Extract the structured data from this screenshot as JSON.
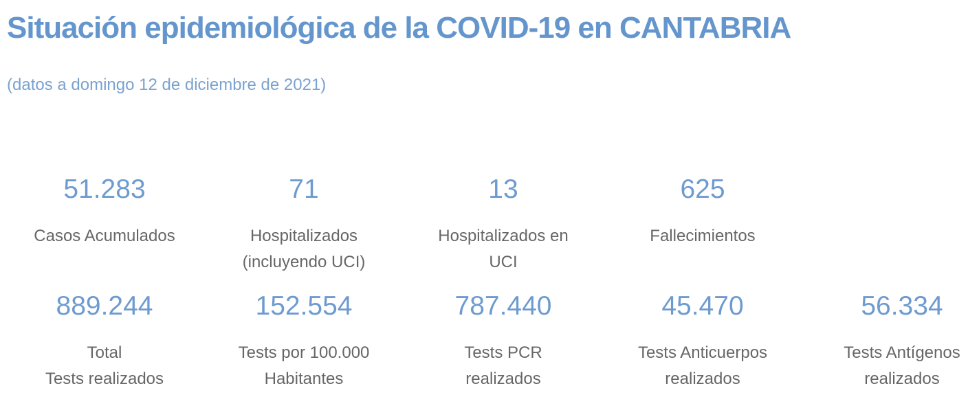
{
  "header": {
    "title": "Situación epidemiológica de la COVID-19 en CANTABRIA",
    "subtitle": "(datos a domingo 12 de diciembre de 2021)"
  },
  "stats_row1": [
    {
      "value": "51.283",
      "label_line1": "Casos Acumulados",
      "label_line2": ""
    },
    {
      "value": "71",
      "label_line1": "Hospitalizados",
      "label_line2": "(incluyendo UCI)"
    },
    {
      "value": "13",
      "label_line1": "Hospitalizados en",
      "label_line2": "UCI"
    },
    {
      "value": "625",
      "label_line1": "Fallecimientos",
      "label_line2": ""
    }
  ],
  "stats_row2": [
    {
      "value": "889.244",
      "label_line1": "Total",
      "label_line2": "Tests realizados"
    },
    {
      "value": "152.554",
      "label_line1": "Tests por 100.000",
      "label_line2": "Habitantes"
    },
    {
      "value": "787.440",
      "label_line1": "Tests PCR",
      "label_line2": "realizados"
    },
    {
      "value": "45.470",
      "label_line1": "Tests Anticuerpos",
      "label_line2": "realizados"
    },
    {
      "value": "56.334",
      "label_line1": "Tests Antígenos",
      "label_line2": "realizados"
    }
  ],
  "colors": {
    "title": "#6496CD",
    "subtitle": "#7AA2D0",
    "value": "#6D9BD0",
    "label": "#666666",
    "background": "#FFFFFF"
  },
  "chart_data": {
    "type": "table",
    "title": "Situación epidemiológica de la COVID-19 en CANTABRIA",
    "subtitle": "(datos a domingo 12 de diciembre de 2021)",
    "series": [
      {
        "name": "Casos Acumulados",
        "value": 51283
      },
      {
        "name": "Hospitalizados (incluyendo UCI)",
        "value": 71
      },
      {
        "name": "Hospitalizados en UCI",
        "value": 13
      },
      {
        "name": "Fallecimientos",
        "value": 625
      },
      {
        "name": "Total Tests realizados",
        "value": 889244
      },
      {
        "name": "Tests por 100.000 Habitantes",
        "value": 152554
      },
      {
        "name": "Tests PCR realizados",
        "value": 787440
      },
      {
        "name": "Tests Anticuerpos realizados",
        "value": 45470
      },
      {
        "name": "Tests Antígenos realizados",
        "value": 56334
      }
    ]
  }
}
